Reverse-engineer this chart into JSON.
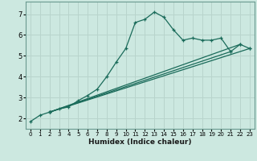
{
  "xlabel": "Humidex (Indice chaleur)",
  "bg_color": "#cce8e0",
  "grid_color": "#b8d4cc",
  "line_color": "#1a6b5a",
  "xlim": [
    -0.5,
    23.5
  ],
  "ylim": [
    1.5,
    7.6
  ],
  "xticks": [
    0,
    1,
    2,
    3,
    4,
    5,
    6,
    7,
    8,
    9,
    10,
    11,
    12,
    13,
    14,
    15,
    16,
    17,
    18,
    19,
    20,
    21,
    22,
    23
  ],
  "yticks": [
    2,
    3,
    4,
    5,
    6,
    7
  ],
  "curve1_x": [
    0,
    1,
    2,
    3,
    4,
    5,
    6,
    7,
    8,
    9,
    10,
    11,
    12,
    13,
    14,
    15,
    16,
    17,
    18,
    19,
    20,
    21,
    22,
    23
  ],
  "curve1_y": [
    1.85,
    2.15,
    2.3,
    2.45,
    2.55,
    2.85,
    3.1,
    3.4,
    4.0,
    4.7,
    5.35,
    6.6,
    6.75,
    7.1,
    6.85,
    6.25,
    5.75,
    5.85,
    5.75,
    5.75,
    5.85,
    5.2,
    5.55,
    5.35
  ],
  "line2_x": [
    2,
    22
  ],
  "line2_y": [
    2.3,
    5.55
  ],
  "line3_x": [
    2,
    23
  ],
  "line3_y": [
    2.3,
    5.35
  ],
  "line4_x": [
    2,
    21
  ],
  "line4_y": [
    2.3,
    5.2
  ],
  "xticklabels_fontsize": 5.0,
  "yticklabels_fontsize": 6.0,
  "xlabel_fontsize": 6.5
}
